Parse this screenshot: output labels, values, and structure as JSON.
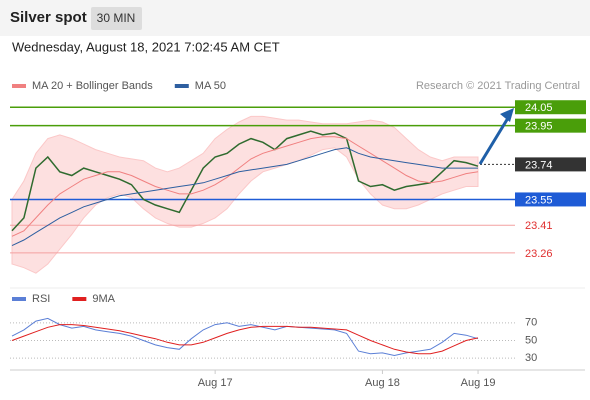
{
  "header": {
    "title": "Silver spot",
    "interval": "30 MIN",
    "date": "Wednesday, August 18, 2021 7:02:45 AM CET"
  },
  "chart_data": [
    {
      "type": "line",
      "credit": "Research © 2021 Trading Central",
      "ylim": [
        23.2,
        24.1
      ],
      "series": [
        {
          "color": "#2f6b2f",
          "values": [
            23.38,
            23.45,
            23.72,
            23.78,
            23.7,
            23.68,
            23.72,
            23.7,
            23.68,
            23.66,
            23.63,
            23.55,
            23.52,
            23.5,
            23.48,
            23.6,
            23.72,
            23.78,
            23.8,
            23.85,
            23.88,
            23.86,
            23.82,
            23.88,
            23.9,
            23.92,
            23.9,
            23.91,
            23.88,
            23.65,
            23.62,
            23.63,
            23.6,
            23.62,
            23.63,
            23.64,
            23.7,
            23.76,
            23.75,
            23.73
          ]
        },
        {
          "name": "MA 20 + Bollinger Bands",
          "color": "#f08080",
          "values": [
            23.35,
            23.38,
            23.45,
            23.52,
            23.58,
            23.62,
            23.66,
            23.68,
            23.7,
            23.7,
            23.68,
            23.65,
            23.62,
            23.6,
            23.58,
            23.58,
            23.6,
            23.63,
            23.67,
            23.72,
            23.77,
            23.8,
            23.82,
            23.84,
            23.86,
            23.88,
            23.89,
            23.89,
            23.88,
            23.84,
            23.8,
            23.76,
            23.72,
            23.68,
            23.65,
            23.64,
            23.65,
            23.67,
            23.69,
            23.7
          ],
          "upper": [
            23.55,
            23.65,
            23.8,
            23.88,
            23.9,
            23.88,
            23.85,
            23.82,
            23.8,
            23.78,
            23.77,
            23.76,
            23.72,
            23.7,
            23.72,
            23.76,
            23.8,
            23.88,
            23.93,
            23.97,
            24.0,
            24.0,
            23.99,
            23.98,
            23.98,
            23.97,
            23.96,
            23.96,
            23.96,
            23.97,
            23.98,
            23.97,
            23.94,
            23.88,
            23.82,
            23.78,
            23.76,
            23.78,
            23.78,
            23.78
          ],
          "lower": [
            23.2,
            23.18,
            23.15,
            23.2,
            23.28,
            23.36,
            23.45,
            23.52,
            23.56,
            23.58,
            23.56,
            23.5,
            23.45,
            23.42,
            23.4,
            23.4,
            23.42,
            23.45,
            23.5,
            23.58,
            23.65,
            23.7,
            23.72,
            23.74,
            23.76,
            23.79,
            23.82,
            23.83,
            23.78,
            23.66,
            23.58,
            23.52,
            23.5,
            23.5,
            23.52,
            23.55,
            23.58,
            23.6,
            23.62,
            23.62
          ]
        },
        {
          "name": "MA 50",
          "color": "#2e5fa0",
          "values": [
            23.3,
            23.33,
            23.37,
            23.41,
            23.45,
            23.48,
            23.51,
            23.53,
            23.55,
            23.57,
            23.58,
            23.59,
            23.6,
            23.61,
            23.62,
            23.63,
            23.64,
            23.66,
            23.68,
            23.7,
            23.71,
            23.72,
            23.73,
            23.74,
            23.76,
            23.78,
            23.8,
            23.82,
            23.83,
            23.8,
            23.78,
            23.77,
            23.76,
            23.75,
            23.74,
            23.73,
            23.72,
            23.72,
            23.72,
            23.72
          ]
        }
      ],
      "levels": [
        {
          "value": 24.05,
          "color": "#4a9e0a",
          "style": "box"
        },
        {
          "value": 23.95,
          "color": "#4a9e0a",
          "style": "box"
        },
        {
          "value": 23.74,
          "color": "#333333",
          "style": "current"
        },
        {
          "value": 23.55,
          "color": "#1e5bd6",
          "style": "box"
        },
        {
          "value": 23.41,
          "color": "#e03030",
          "style": "text"
        },
        {
          "value": 23.26,
          "color": "#e03030",
          "style": "text"
        }
      ]
    },
    {
      "type": "line",
      "ylim": [
        20,
        80
      ],
      "yticks": [
        30,
        50,
        70
      ],
      "categories": [
        null,
        null,
        null,
        null,
        null,
        null,
        null,
        null,
        null,
        null,
        null,
        null,
        null,
        null,
        null,
        null,
        null,
        "Aug 17",
        null,
        null,
        null,
        null,
        null,
        null,
        null,
        null,
        null,
        null,
        null,
        null,
        null,
        "Aug 18",
        null,
        null,
        null,
        null,
        null,
        null,
        null,
        "Aug 19"
      ],
      "series": [
        {
          "name": "RSI",
          "color": "#5b7fd6",
          "values": [
            55,
            62,
            72,
            75,
            68,
            64,
            66,
            62,
            60,
            58,
            55,
            50,
            45,
            42,
            40,
            52,
            62,
            68,
            70,
            66,
            68,
            65,
            62,
            66,
            65,
            64,
            63,
            62,
            58,
            38,
            35,
            36,
            33,
            36,
            38,
            40,
            48,
            58,
            56,
            52
          ]
        },
        {
          "name": "9MA",
          "color": "#e02020",
          "values": [
            50,
            55,
            60,
            65,
            68,
            68,
            67,
            65,
            63,
            61,
            58,
            55,
            52,
            48,
            45,
            45,
            48,
            53,
            58,
            62,
            65,
            66,
            66,
            66,
            65,
            65,
            64,
            63,
            62,
            56,
            50,
            45,
            40,
            37,
            35,
            35,
            38,
            44,
            50,
            53
          ]
        }
      ]
    }
  ]
}
